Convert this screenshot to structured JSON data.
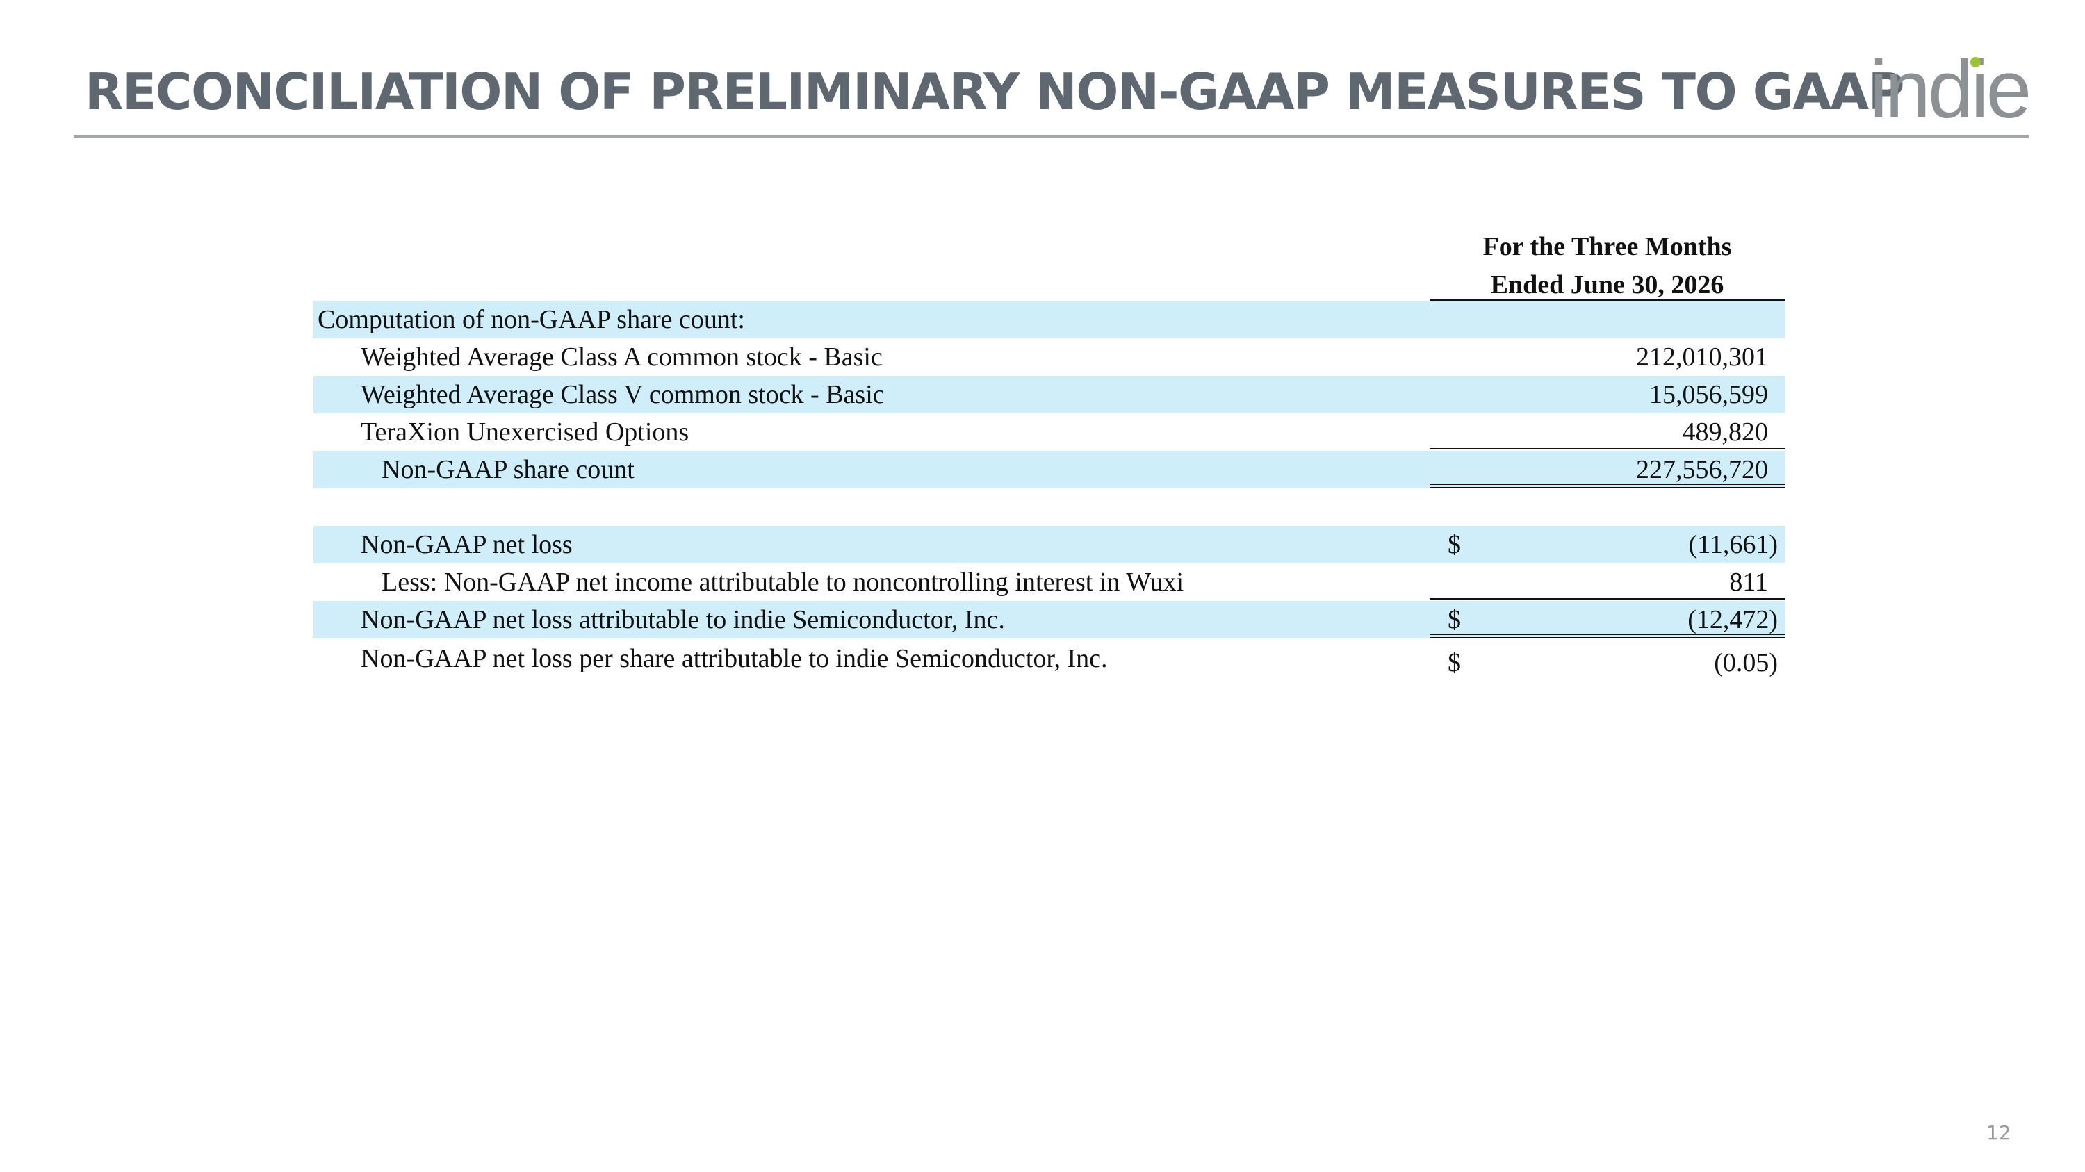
{
  "slide": {
    "title": "RECONCILIATION OF PRELIMINARY NON-GAAP MEASURES TO GAAP",
    "logo_text": "indie",
    "page_number": "12"
  },
  "table": {
    "column_header_line1": "For the Three Months",
    "column_header_line2": "Ended June 30, 2026",
    "rows": [
      {
        "label": "Computation of non-GAAP share count:",
        "dollar": "",
        "amount": ""
      },
      {
        "label": "Weighted Average Class A common stock - Basic",
        "dollar": "",
        "amount": "212,010,301"
      },
      {
        "label": "Weighted Average Class V common stock - Basic",
        "dollar": "",
        "amount": "15,056,599"
      },
      {
        "label": "TeraXion Unexercised Options",
        "dollar": "",
        "amount": "489,820"
      },
      {
        "label": "Non-GAAP share count",
        "dollar": "",
        "amount": "227,556,720"
      },
      {
        "label": "Non-GAAP net loss",
        "dollar": "$",
        "amount": "(11,661)"
      },
      {
        "label": "Less: Non-GAAP net income attributable to noncontrolling interest in Wuxi",
        "dollar": "",
        "amount": "811"
      },
      {
        "label": "Non-GAAP net loss attributable to indie Semiconductor, Inc.",
        "dollar": "$",
        "amount": "(12,472)"
      },
      {
        "label": "Non-GAAP net loss per share attributable to indie Semiconductor, Inc.",
        "dollar": "$",
        "amount": "(0.05)"
      }
    ]
  }
}
